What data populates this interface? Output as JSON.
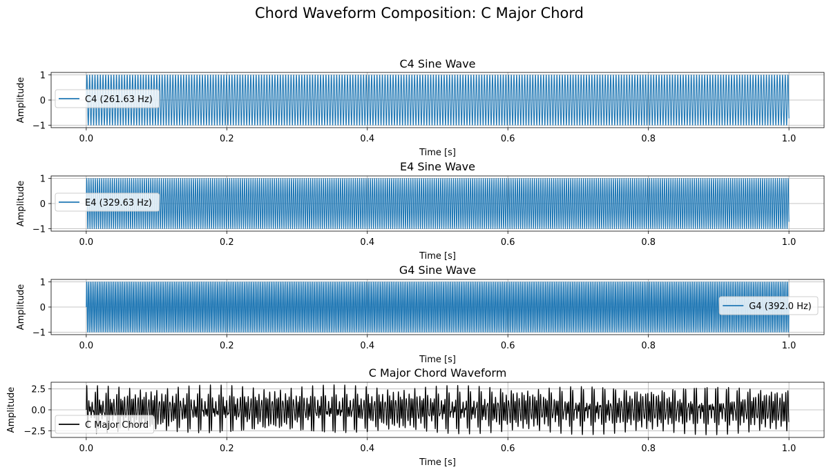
{
  "figure_title": "Chord Waveform Composition: C Major Chord",
  "colors": {
    "tone": "#1f77b4",
    "chord": "#000000",
    "grid": "#b0b0b0"
  },
  "chart_data": [
    {
      "type": "line",
      "title": "C4 Sine Wave",
      "xlabel": "Time [s]",
      "ylabel": "Amplitude",
      "xlim": [
        -0.05,
        1.05
      ],
      "ylim": [
        -1.1,
        1.1
      ],
      "xticks": [
        0.0,
        0.2,
        0.4,
        0.6,
        0.8,
        1.0
      ],
      "xtick_labels": [
        "0.0",
        "0.2",
        "0.4",
        "0.6",
        "0.8",
        "1.0"
      ],
      "yticks": [
        -1,
        0,
        1
      ],
      "ytick_labels": [
        "−1",
        "0",
        "1"
      ],
      "grid": true,
      "legend_position": "center-left",
      "series": [
        {
          "name": "C4 (261.63 Hz)",
          "color": "#1f77b4",
          "kind": "sine",
          "frequency_hz": 261.63,
          "amplitude": 1.0,
          "duration_s": 1.0
        }
      ]
    },
    {
      "type": "line",
      "title": "E4 Sine Wave",
      "xlabel": "Time [s]",
      "ylabel": "Amplitude",
      "xlim": [
        -0.05,
        1.05
      ],
      "ylim": [
        -1.1,
        1.1
      ],
      "xticks": [
        0.0,
        0.2,
        0.4,
        0.6,
        0.8,
        1.0
      ],
      "xtick_labels": [
        "0.0",
        "0.2",
        "0.4",
        "0.6",
        "0.8",
        "1.0"
      ],
      "yticks": [
        -1,
        0,
        1
      ],
      "ytick_labels": [
        "−1",
        "0",
        "1"
      ],
      "grid": true,
      "legend_position": "center-left",
      "series": [
        {
          "name": "E4 (329.63 Hz)",
          "color": "#1f77b4",
          "kind": "sine",
          "frequency_hz": 329.63,
          "amplitude": 1.0,
          "duration_s": 1.0
        }
      ]
    },
    {
      "type": "line",
      "title": "G4 Sine Wave",
      "xlabel": "Time [s]",
      "ylabel": "Amplitude",
      "xlim": [
        -0.05,
        1.05
      ],
      "ylim": [
        -1.1,
        1.1
      ],
      "xticks": [
        0.0,
        0.2,
        0.4,
        0.6,
        0.8,
        1.0
      ],
      "xtick_labels": [
        "0.0",
        "0.2",
        "0.4",
        "0.6",
        "0.8",
        "1.0"
      ],
      "yticks": [
        -1,
        0,
        1
      ],
      "ytick_labels": [
        "−1",
        "0",
        "1"
      ],
      "grid": true,
      "legend_position": "center-right",
      "series": [
        {
          "name": "G4 (392.0 Hz)",
          "color": "#1f77b4",
          "kind": "sine",
          "frequency_hz": 392.0,
          "amplitude": 1.0,
          "duration_s": 1.0
        }
      ]
    },
    {
      "type": "line",
      "title": "C Major Chord Waveform",
      "xlabel": "Time [s]",
      "ylabel": "Amplitude",
      "xlim": [
        -0.05,
        1.05
      ],
      "ylim": [
        -3.3,
        3.3
      ],
      "xticks": [
        0.0,
        0.2,
        0.4,
        0.6,
        0.8,
        1.0
      ],
      "xtick_labels": [
        "0.0",
        "0.2",
        "0.4",
        "0.6",
        "0.8",
        "1.0"
      ],
      "yticks": [
        -2.5,
        0.0,
        2.5
      ],
      "ytick_labels": [
        "−2.5",
        "0.0",
        "2.5"
      ],
      "grid": true,
      "legend_position": "lower-left",
      "series": [
        {
          "name": "C Major Chord",
          "color": "#000000",
          "kind": "sum",
          "components_hz": [
            261.63,
            329.63,
            392.0
          ],
          "duration_s": 1.0
        }
      ]
    }
  ]
}
